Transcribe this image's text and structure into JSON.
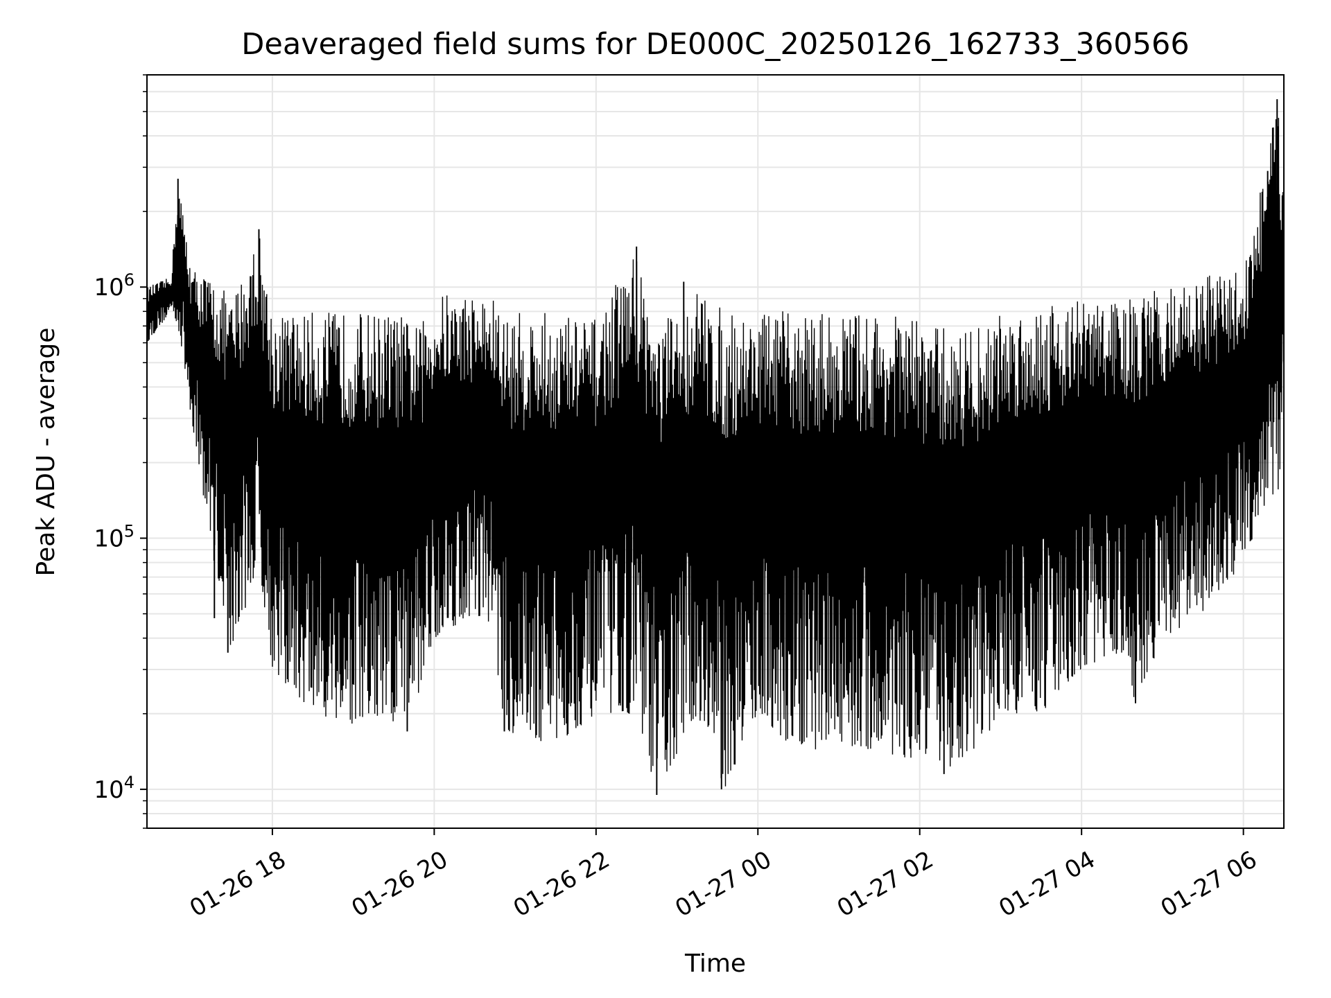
{
  "chart_data": {
    "type": "line",
    "title": "Deaveraged field sums for DE000C_20250126_162733_360566",
    "xlabel": "Time",
    "ylabel": "Peak ADU - average",
    "yscale": "log",
    "ylim": [
      7000,
      7000000
    ],
    "xlim": [
      "2025-01-26 16:27",
      "2025-01-27 06:30"
    ],
    "grid": true,
    "line_color": "#000000",
    "grid_color": "#e6e6e6",
    "xticks": [
      {
        "value": "2025-01-26 18:00",
        "label": "01-26 18"
      },
      {
        "value": "2025-01-26 20:00",
        "label": "01-26 20"
      },
      {
        "value": "2025-01-26 22:00",
        "label": "01-26 22"
      },
      {
        "value": "2025-01-27 00:00",
        "label": "01-27 00"
      },
      {
        "value": "2025-01-27 02:00",
        "label": "01-27 02"
      },
      {
        "value": "2025-01-27 04:00",
        "label": "01-27 04"
      },
      {
        "value": "2025-01-27 06:00",
        "label": "01-27 06"
      }
    ],
    "yticks": [
      {
        "value": 10000,
        "base": "10",
        "exp": "4"
      },
      {
        "value": 100000,
        "base": "10",
        "exp": "5"
      },
      {
        "value": 1000000,
        "base": "10",
        "exp": "6"
      }
    ],
    "envelope": [
      {
        "x": "2025-01-26 16:27",
        "hi": 1000000,
        "lo": 600000
      },
      {
        "x": "2025-01-26 16:45",
        "hi": 1100000,
        "lo": 800000
      },
      {
        "x": "2025-01-26 16:50",
        "hi": 2700000,
        "lo": 700000
      },
      {
        "x": "2025-01-26 17:00",
        "hi": 1200000,
        "lo": 300000
      },
      {
        "x": "2025-01-26 17:15",
        "hi": 1100000,
        "lo": 90000
      },
      {
        "x": "2025-01-26 17:30",
        "hi": 900000,
        "lo": 35000
      },
      {
        "x": "2025-01-26 17:50",
        "hi": 1700000,
        "lo": 80000
      },
      {
        "x": "2025-01-26 18:00",
        "hi": 800000,
        "lo": 30000
      },
      {
        "x": "2025-01-26 18:30",
        "hi": 800000,
        "lo": 20000
      },
      {
        "x": "2025-01-26 19:00",
        "hi": 800000,
        "lo": 18000
      },
      {
        "x": "2025-01-26 19:30",
        "hi": 800000,
        "lo": 17000
      },
      {
        "x": "2025-01-26 19:50",
        "hi": 700000,
        "lo": 25000
      },
      {
        "x": "2025-01-26 20:00",
        "hi": 950000,
        "lo": 40000
      },
      {
        "x": "2025-01-26 20:30",
        "hi": 950000,
        "lo": 50000
      },
      {
        "x": "2025-01-26 20:45",
        "hi": 900000,
        "lo": 45000
      },
      {
        "x": "2025-01-26 20:50",
        "hi": 800000,
        "lo": 17000
      },
      {
        "x": "2025-01-26 21:30",
        "hi": 800000,
        "lo": 15000
      },
      {
        "x": "2025-01-26 22:00",
        "hi": 750000,
        "lo": 20000
      },
      {
        "x": "2025-01-26 22:30",
        "hi": 1450000,
        "lo": 20000
      },
      {
        "x": "2025-01-26 22:45",
        "hi": 700000,
        "lo": 9500
      },
      {
        "x": "2025-01-26 23:15",
        "hi": 1000000,
        "lo": 20000
      },
      {
        "x": "2025-01-26 23:35",
        "hi": 800000,
        "lo": 10000
      },
      {
        "x": "2025-01-27 00:00",
        "hi": 800000,
        "lo": 20000
      },
      {
        "x": "2025-01-27 00:30",
        "hi": 800000,
        "lo": 14000
      },
      {
        "x": "2025-01-27 01:00",
        "hi": 800000,
        "lo": 15000
      },
      {
        "x": "2025-01-27 01:30",
        "hi": 800000,
        "lo": 14000
      },
      {
        "x": "2025-01-27 02:00",
        "hi": 750000,
        "lo": 13000
      },
      {
        "x": "2025-01-27 02:15",
        "hi": 700000,
        "lo": 11500
      },
      {
        "x": "2025-01-27 02:45",
        "hi": 700000,
        "lo": 15000
      },
      {
        "x": "2025-01-27 03:00",
        "hi": 800000,
        "lo": 20000
      },
      {
        "x": "2025-01-27 03:30",
        "hi": 900000,
        "lo": 20000
      },
      {
        "x": "2025-01-27 04:00",
        "hi": 900000,
        "lo": 30000
      },
      {
        "x": "2025-01-27 04:30",
        "hi": 900000,
        "lo": 35000
      },
      {
        "x": "2025-01-27 04:40",
        "hi": 900000,
        "lo": 22000
      },
      {
        "x": "2025-01-27 05:00",
        "hi": 1000000,
        "lo": 40000
      },
      {
        "x": "2025-01-27 05:30",
        "hi": 1100000,
        "lo": 50000
      },
      {
        "x": "2025-01-27 06:00",
        "hi": 1200000,
        "lo": 80000
      },
      {
        "x": "2025-01-27 06:15",
        "hi": 2900000,
        "lo": 130000
      },
      {
        "x": "2025-01-27 06:25",
        "hi": 5600000,
        "lo": 130000
      },
      {
        "x": "2025-01-27 06:30",
        "hi": 2600000,
        "lo": 300000
      }
    ],
    "spikes_up": [
      {
        "x": "2025-01-26 16:50",
        "y": 2700000
      },
      {
        "x": "2025-01-26 17:50",
        "y": 1700000
      },
      {
        "x": "2025-01-26 22:30",
        "y": 1450000
      },
      {
        "x": "2025-01-26 23:05",
        "y": 1050000
      },
      {
        "x": "2025-01-27 06:18",
        "y": 2900000
      },
      {
        "x": "2025-01-27 06:25",
        "y": 5600000
      }
    ],
    "spikes_down": [
      {
        "x": "2025-01-26 17:17",
        "y": 48000
      },
      {
        "x": "2025-01-26 17:27",
        "y": 35000
      },
      {
        "x": "2025-01-26 19:40",
        "y": 17000
      },
      {
        "x": "2025-01-26 20:52",
        "y": 17000
      },
      {
        "x": "2025-01-26 22:45",
        "y": 9500
      },
      {
        "x": "2025-01-26 23:33",
        "y": 10000
      },
      {
        "x": "2025-01-27 02:18",
        "y": 11500
      },
      {
        "x": "2025-01-27 04:40",
        "y": 22000
      }
    ]
  }
}
